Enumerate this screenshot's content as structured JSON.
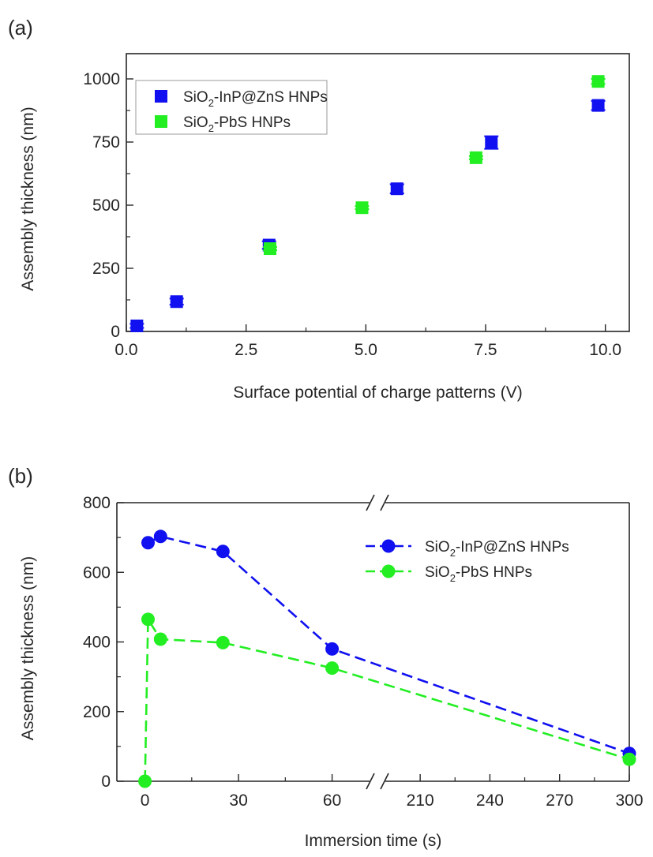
{
  "chart_data": [
    {
      "type": "scatter",
      "panel_label": "(a)",
      "xlabel": "Surface potential of charge patterns (V)",
      "ylabel": "Assembly thickness (nm)",
      "xlim": [
        0,
        10.5
      ],
      "ylim": [
        0,
        1100
      ],
      "xticks": [
        0.0,
        2.5,
        5.0,
        7.5,
        10.0
      ],
      "xtick_labels": [
        "0.0",
        "2.5",
        "5.0",
        "7.5",
        "10.0"
      ],
      "yticks": [
        0,
        250,
        500,
        750,
        1000
      ],
      "ytick_labels": [
        "0",
        "250",
        "500",
        "750",
        "1000"
      ],
      "legend_position": "top-left",
      "series": [
        {
          "name": "SiO2-InP@ZnS HNPs",
          "label_main": "SiO",
          "label_sub": "2",
          "label_rest": "-InP@ZnS HNPs",
          "color": "#1010f0",
          "marker": "square",
          "x": [
            0.22,
            1.05,
            2.98,
            5.65,
            7.62,
            9.85
          ],
          "y": [
            22,
            118,
            342,
            565,
            748,
            895
          ],
          "err": [
            8,
            12,
            15,
            18,
            25,
            18
          ]
        },
        {
          "name": "SiO2-PbS HNPs",
          "label_main": "SiO",
          "label_sub": "2",
          "label_rest": "-PbS HNPs",
          "color": "#22ee22",
          "marker": "square",
          "x": [
            3.0,
            4.92,
            7.3,
            9.85
          ],
          "y": [
            328,
            490,
            688,
            990
          ],
          "err": [
            6,
            6,
            6,
            10
          ]
        }
      ]
    },
    {
      "type": "line",
      "panel_label": "(b)",
      "xlabel": "Immersion time (s)",
      "ylabel": "Assembly thickness (nm)",
      "ylim": [
        0,
        800
      ],
      "yticks": [
        0,
        200,
        400,
        600,
        800
      ],
      "ytick_labels": [
        "0",
        "200",
        "400",
        "600",
        "800"
      ],
      "x_axis_break": {
        "left_range": [
          -9,
          72
        ],
        "right_range": [
          195,
          300
        ]
      },
      "xticks": [
        0,
        30,
        60,
        210,
        240,
        270,
        300
      ],
      "xtick_labels": [
        "0",
        "30",
        "60",
        "210",
        "240",
        "270",
        "300"
      ],
      "legend_position": "top-right",
      "series": [
        {
          "name": "SiO2-InP@ZnS HNPs",
          "label_main": "SiO",
          "label_sub": "2",
          "label_rest": "-InP@ZnS HNPs",
          "color": "#1010f0",
          "marker": "circle",
          "line_style": "dashed",
          "x": [
            1,
            5,
            25,
            60,
            300
          ],
          "y": [
            685,
            703,
            660,
            380,
            80
          ]
        },
        {
          "name": "SiO2-PbS HNPs",
          "label_main": "SiO",
          "label_sub": "2",
          "label_rest": "-PbS HNPs",
          "color": "#22ee22",
          "marker": "circle",
          "line_style": "dashed",
          "x": [
            0,
            1,
            5,
            25,
            60,
            300
          ],
          "y": [
            0,
            465,
            408,
            398,
            325,
            63
          ]
        }
      ]
    }
  ]
}
